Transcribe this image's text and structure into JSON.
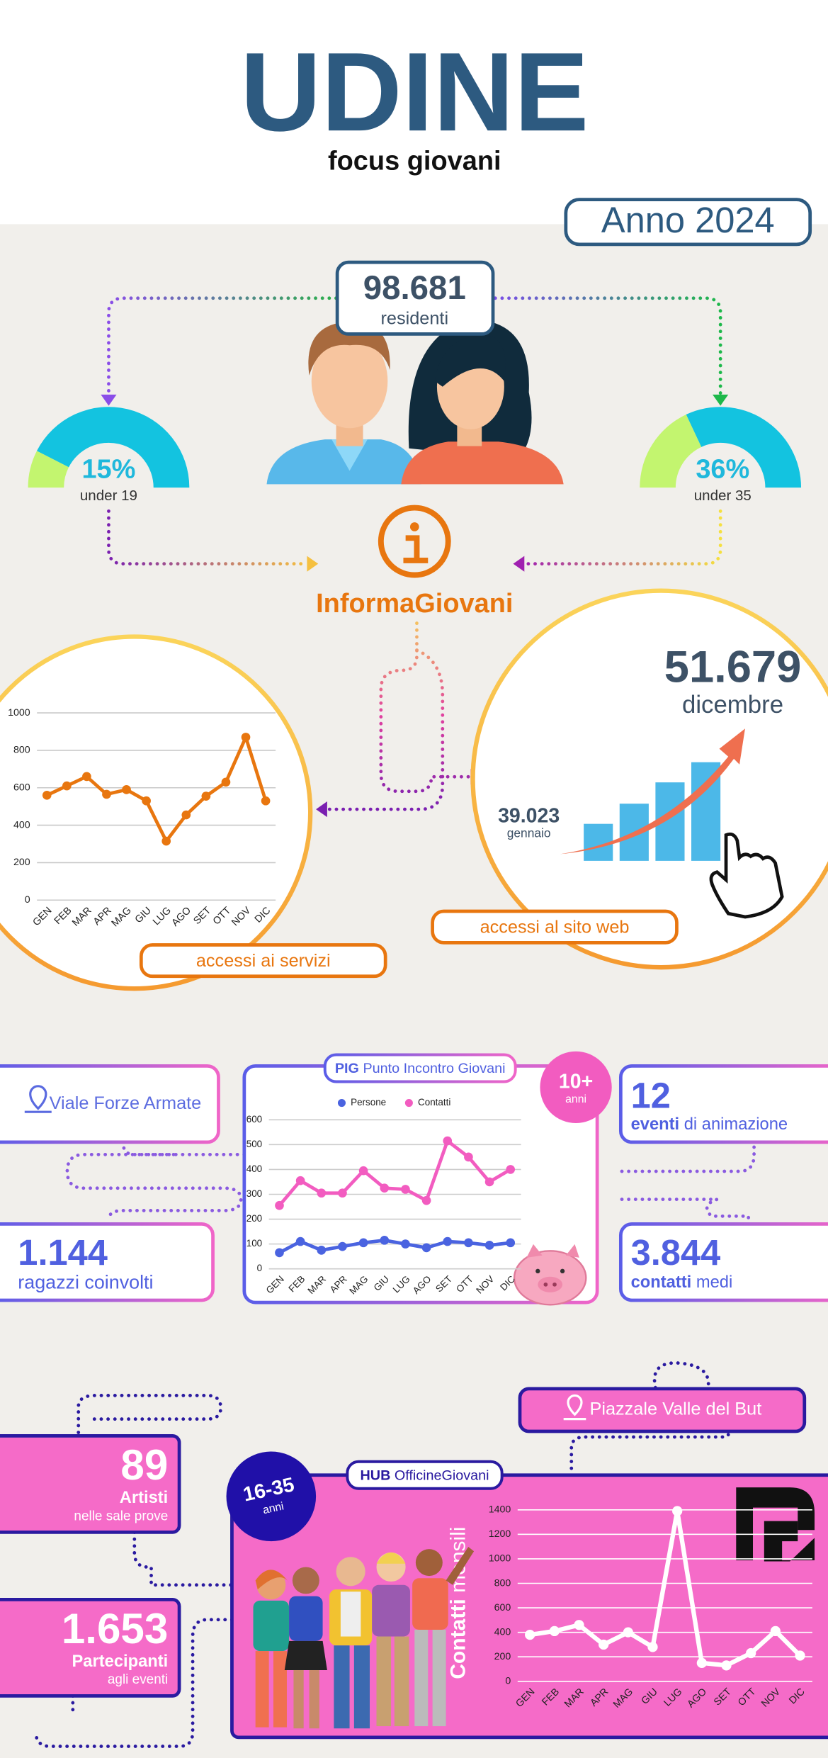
{
  "header": {
    "title": "UDINE",
    "subtitle": "focus giovani",
    "year": "Anno 2024"
  },
  "residents": {
    "value": "98.681",
    "label": "residenti"
  },
  "gauges": [
    {
      "value": 15,
      "label": "15%",
      "caption": "under 19"
    },
    {
      "value": 36,
      "label": "36%",
      "caption": "under 35"
    }
  ],
  "informagiovani": "InformaGiovani",
  "web": {
    "december_value": "51.679",
    "december_label": "dicembre",
    "january_value": "39.023",
    "january_label": "gennaio",
    "caption": "accessi al sito web"
  },
  "pig": {
    "name": "PIG",
    "full": "Punto Incontro Giovani",
    "address": "Viale Forze Armate",
    "age_value": "10+",
    "age_label": "anni",
    "kids_value": "1.144",
    "kids_label": "ragazzi coinvolti",
    "events_value": "12",
    "events_bold": "eventi",
    "events_rest": "di animazione",
    "contacts_value": "3.844",
    "contacts_bold": "contatti",
    "contacts_rest": "medi"
  },
  "hub": {
    "name": "HUB",
    "full": "OfficineGiovani",
    "address": "Piazzale Valle del But",
    "age_value": "16-35",
    "age_label": "anni",
    "artists_value": "89",
    "artists_label": "Artisti",
    "artists_note": "nelle sale prove",
    "participants_value": "1.653",
    "participants_label": "Partecipanti",
    "participants_note": "agli eventi"
  },
  "chart_data": [
    {
      "type": "line",
      "title": "accessi ai servizi",
      "categories": [
        "GEN",
        "FEB",
        "MAR",
        "APR",
        "MAG",
        "GIU",
        "LUG",
        "AGO",
        "SET",
        "OTT",
        "NOV",
        "DIC"
      ],
      "values": [
        560,
        610,
        660,
        565,
        590,
        530,
        315,
        455,
        555,
        630,
        870,
        530
      ],
      "color": "#e8760f",
      "ylim": [
        0,
        1000
      ],
      "yticks": [
        0,
        200,
        400,
        600,
        800,
        1000
      ],
      "grid": true
    },
    {
      "type": "line",
      "categories": [
        "GEN",
        "FEB",
        "MAR",
        "APR",
        "MAG",
        "GIU",
        "LUG",
        "AGO",
        "SET",
        "OTT",
        "NOV",
        "DIC"
      ],
      "series": [
        {
          "name": "Persone",
          "color": "#4a63e0",
          "values": [
            65,
            110,
            75,
            90,
            105,
            115,
            100,
            85,
            110,
            105,
            95,
            105
          ]
        },
        {
          "name": "Contatti",
          "color": "#f25cc0",
          "values": [
            255,
            355,
            305,
            305,
            395,
            325,
            320,
            275,
            515,
            450,
            350,
            400
          ]
        }
      ],
      "ylim": [
        0,
        600
      ],
      "yticks": [
        0,
        100,
        200,
        300,
        400,
        500,
        600
      ],
      "grid": true,
      "legend": "top"
    },
    {
      "type": "line",
      "ylabel_bold": "Contatti",
      "ylabel_rest": "mensili",
      "categories": [
        "GEN",
        "FEB",
        "MAR",
        "APR",
        "MAG",
        "GIU",
        "LUG",
        "AGO",
        "SET",
        "OTT",
        "NOV",
        "DIC"
      ],
      "values": [
        380,
        410,
        460,
        300,
        400,
        280,
        1390,
        150,
        130,
        230,
        410,
        210
      ],
      "color": "#ffffff",
      "ylim": [
        0,
        1400
      ],
      "yticks": [
        0,
        200,
        400,
        600,
        800,
        1000,
        1200,
        1400
      ],
      "grid": true
    }
  ]
}
